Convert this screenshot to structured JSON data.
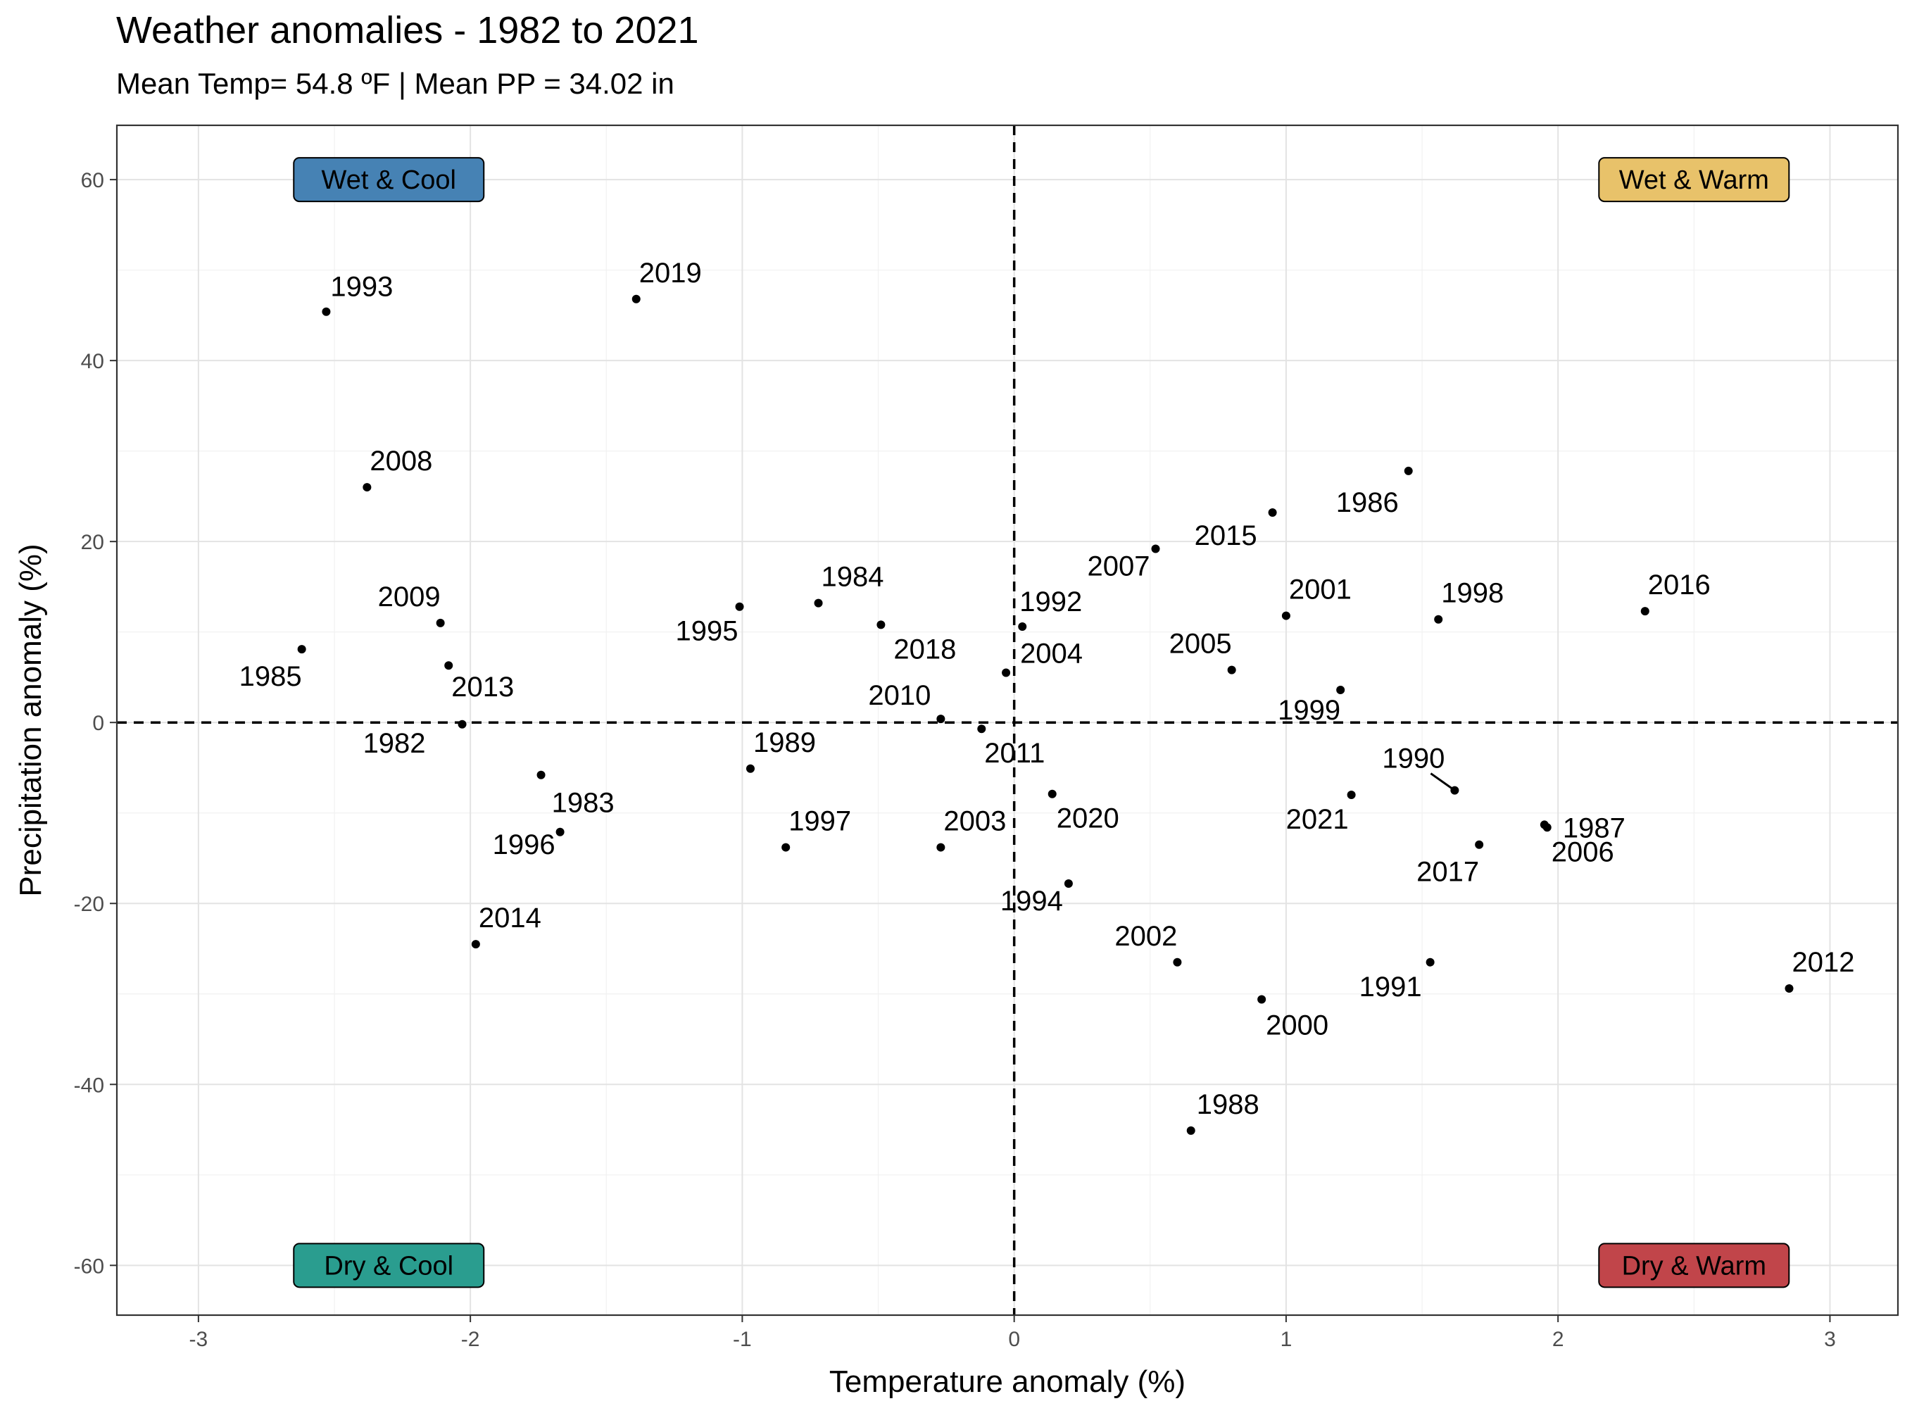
{
  "chart_data": {
    "type": "scatter",
    "title": "Weather anomalies - 1982 to 2021",
    "subtitle": "Mean Temp= 54.8 ºF | Mean PP = 34.02 in",
    "xlabel": "Temperature anomaly (%)",
    "ylabel": "Precipitation anomaly (%)",
    "xlim": [
      -3.3,
      3.25
    ],
    "ylim": [
      -65.5,
      66
    ],
    "xticks": [
      -3,
      -2,
      -1,
      0,
      1,
      2,
      3
    ],
    "yticks": [
      -60,
      -40,
      -20,
      0,
      20,
      40,
      60
    ],
    "grid": true,
    "reference_lines": {
      "x": 0,
      "y": 0,
      "style": "dashed"
    },
    "quadrant_labels": [
      {
        "text": "Wet & Cool",
        "x": -2.3,
        "y": 60,
        "color": "#4682b4"
      },
      {
        "text": "Wet & Warm",
        "x": 2.5,
        "y": 60,
        "color": "#e8c26a"
      },
      {
        "text": "Dry & Cool",
        "x": -2.3,
        "y": -60,
        "color": "#2a9d8f"
      },
      {
        "text": "Dry & Warm",
        "x": 2.5,
        "y": -60,
        "color": "#c1454a"
      }
    ],
    "points": [
      {
        "year": "1982",
        "x": -2.03,
        "y": -0.2
      },
      {
        "year": "1983",
        "x": -1.67,
        "y": -12.1
      },
      {
        "year": "1984",
        "x": -0.72,
        "y": 13.2
      },
      {
        "year": "1985",
        "x": -2.62,
        "y": 8.1
      },
      {
        "year": "1986",
        "x": 1.45,
        "y": 27.8
      },
      {
        "year": "1987",
        "x": 1.95,
        "y": -11.3
      },
      {
        "year": "1988",
        "x": 0.65,
        "y": -45.1
      },
      {
        "year": "1989",
        "x": -0.97,
        "y": -5.1
      },
      {
        "year": "1990",
        "x": 1.62,
        "y": -7.5
      },
      {
        "year": "1991",
        "x": 1.53,
        "y": -26.5
      },
      {
        "year": "1992",
        "x": 0.03,
        "y": 10.6
      },
      {
        "year": "1993",
        "x": -2.53,
        "y": 45.4
      },
      {
        "year": "1994",
        "x": 0.2,
        "y": -17.8
      },
      {
        "year": "1995",
        "x": -1.01,
        "y": 12.8
      },
      {
        "year": "1996",
        "x": -1.74,
        "y": -5.8
      },
      {
        "year": "1997",
        "x": -0.84,
        "y": -13.8
      },
      {
        "year": "1998",
        "x": 1.56,
        "y": 11.4
      },
      {
        "year": "1999",
        "x": 1.2,
        "y": 3.6
      },
      {
        "year": "2000",
        "x": 0.91,
        "y": -30.6
      },
      {
        "year": "2001",
        "x": 1.0,
        "y": 11.8
      },
      {
        "year": "2002",
        "x": 0.6,
        "y": -26.5
      },
      {
        "year": "2003",
        "x": -0.27,
        "y": -13.8
      },
      {
        "year": "2004",
        "x": -0.03,
        "y": 5.5
      },
      {
        "year": "2005",
        "x": 0.8,
        "y": 5.8
      },
      {
        "year": "2006",
        "x": 1.96,
        "y": -11.6
      },
      {
        "year": "2007",
        "x": 0.52,
        "y": 19.2
      },
      {
        "year": "2008",
        "x": -2.38,
        "y": 26.0
      },
      {
        "year": "2009",
        "x": -2.11,
        "y": 11.0
      },
      {
        "year": "2010",
        "x": -0.27,
        "y": 0.4
      },
      {
        "year": "2011",
        "x": -0.12,
        "y": -0.7
      },
      {
        "year": "2012",
        "x": 2.85,
        "y": -29.4
      },
      {
        "year": "2013",
        "x": -2.08,
        "y": 6.3
      },
      {
        "year": "2014",
        "x": -1.98,
        "y": -24.5
      },
      {
        "year": "2015",
        "x": 0.95,
        "y": 23.2
      },
      {
        "year": "2016",
        "x": 2.32,
        "y": 12.3
      },
      {
        "year": "2017",
        "x": 1.71,
        "y": -13.5
      },
      {
        "year": "2018",
        "x": -0.49,
        "y": 10.8
      },
      {
        "year": "2019",
        "x": -1.39,
        "y": 46.8
      },
      {
        "year": "2020",
        "x": 0.14,
        "y": -7.9
      },
      {
        "year": "2021",
        "x": 1.24,
        "y": -8.0
      }
    ]
  }
}
